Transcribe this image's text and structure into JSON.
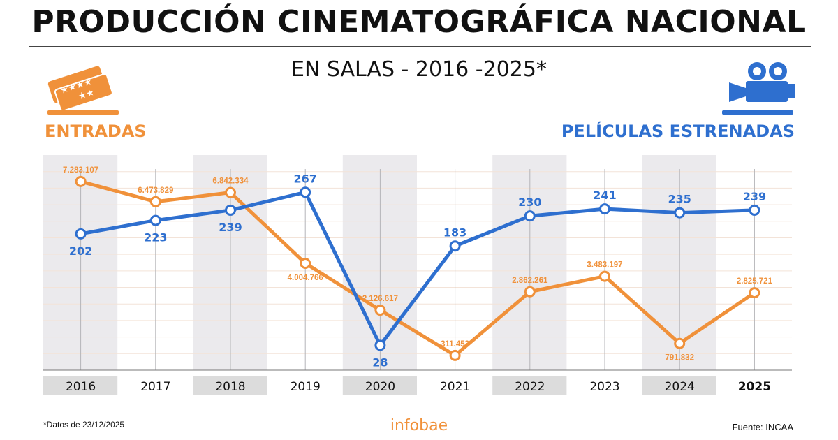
{
  "title": "PRODUCCIÓN CINEMATOGRÁFICA NACIONAL",
  "subtitle": "EN SALAS - 2016 -2025*",
  "left_label": "ENTRADAS",
  "right_label": "PELÍCULAS ESTRENADAS",
  "footnote": "*Datos de 23/12/2025",
  "brand": "infobae",
  "source": "Fuente: INCAA",
  "icons": {
    "left": "ticket-icon",
    "right": "movie-camera-icon"
  },
  "colors": {
    "entradas": "#f0913a",
    "peliculas": "#2e6fcf",
    "band": "#ebeaed",
    "year_band": "#dcdcdc"
  },
  "chart_data": {
    "type": "line",
    "categories": [
      "2016",
      "2017",
      "2018",
      "2019",
      "2020",
      "2021",
      "2022",
      "2023",
      "2024",
      "2025"
    ],
    "highlighted_category": "2025",
    "series": [
      {
        "name": "ENTRADAS",
        "values": [
          7283107,
          6473829,
          6842334,
          4004766,
          2126617,
          311453,
          2862261,
          3483197,
          791832,
          2825721
        ],
        "labels": [
          "7.283.107",
          "6.473.829",
          "6.842.334",
          "4.004.766",
          "2.126.617",
          "311.453",
          "2.862.261",
          "3.483.197",
          "791.832",
          "2.825.721"
        ],
        "color": "#f0913a",
        "ylim": [
          0,
          7700000
        ]
      },
      {
        "name": "PELÍCULAS ESTRENADAS",
        "values": [
          202,
          223,
          239,
          267,
          28,
          183,
          230,
          241,
          235,
          239
        ],
        "labels": [
          "202",
          "223",
          "239",
          "267",
          "28",
          "183",
          "230",
          "241",
          "235",
          "239"
        ],
        "color": "#2e6fcf",
        "ylim": [
          0,
          300
        ]
      }
    ],
    "grid": true,
    "shaded_categories": [
      "2016",
      "2018",
      "2020",
      "2022",
      "2024"
    ]
  }
}
